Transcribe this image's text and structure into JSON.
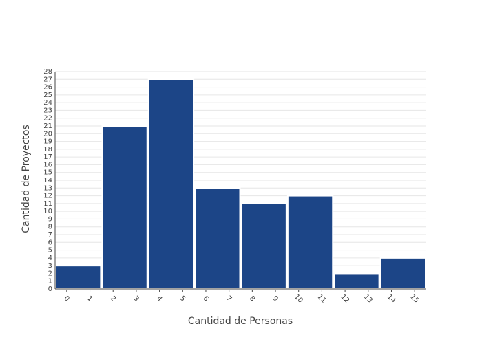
{
  "chart_data": {
    "type": "histogram",
    "x_label": "Cantidad de Personas",
    "y_label": "Cantidad de Proyectos",
    "bins": [
      -0.5,
      1.5,
      3.5,
      5.5,
      7.5,
      9.5,
      11.5,
      13.5,
      15.5
    ],
    "values": [
      3,
      21,
      27,
      13,
      11,
      12,
      2,
      4
    ],
    "color": "#1c4587",
    "xlim": [
      -0.5,
      15.5
    ],
    "xticks": [
      0,
      1,
      2,
      3,
      4,
      5,
      6,
      7,
      8,
      9,
      10,
      11,
      12,
      13,
      14,
      15
    ],
    "ylim": [
      0,
      28
    ],
    "yticks": [
      0,
      1,
      2,
      3,
      4,
      5,
      6,
      7,
      8,
      9,
      10,
      11,
      12,
      13,
      14,
      15,
      16,
      17,
      18,
      19,
      20,
      21,
      22,
      23,
      24,
      25,
      26,
      27,
      28
    ],
    "grid": true
  }
}
